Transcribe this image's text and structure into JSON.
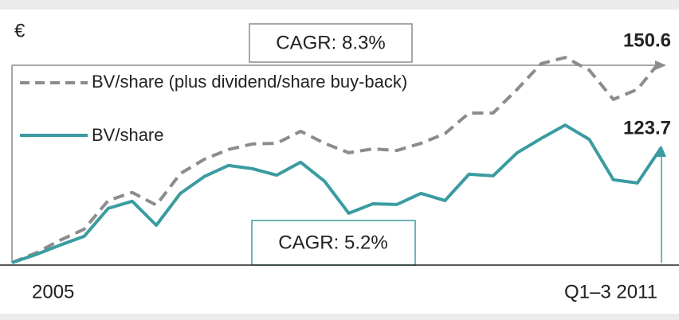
{
  "chart_data": {
    "type": "line",
    "annotations": {
      "unit": "€",
      "cagr_top": "CAGR: 8.3%",
      "cagr_bottom": "CAGR: 5.2%"
    },
    "categories": [
      "2005",
      null,
      null,
      null,
      null,
      null,
      null,
      null,
      null,
      null,
      null,
      null,
      null,
      null,
      null,
      null,
      null,
      null,
      null,
      null,
      null,
      null,
      null,
      null,
      null,
      null,
      null,
      "Q1–3 2011"
    ],
    "ylim": [
      88.2,
      165.3
    ],
    "series": [
      {
        "name": "BV/share (plus dividend/share buy-back)",
        "color": "#8c8c8c",
        "dashed": true,
        "values": [
          88.2,
          91.2,
          95.1,
          98.5,
          107.3,
          109.8,
          105.9,
          115.6,
          120.0,
          123.0,
          124.7,
          124.9,
          128.6,
          124.9,
          122.0,
          123.2,
          122.7,
          124.9,
          127.9,
          134.2,
          134.2,
          141.5,
          149.4,
          151.3,
          147.4,
          138.4,
          141.5,
          150.6
        ]
      },
      {
        "name": "BV/share",
        "color": "#3a9ca1",
        "dashed": false,
        "values": [
          88.2,
          90.7,
          93.6,
          96.3,
          104.9,
          107.1,
          99.7,
          109.5,
          114.7,
          118.1,
          117.1,
          115.1,
          119.1,
          113.2,
          103.4,
          106.3,
          106.1,
          109.5,
          107.3,
          115.4,
          114.9,
          122.0,
          126.4,
          130.5,
          126.1,
          113.7,
          112.7,
          123.7
        ]
      }
    ]
  }
}
